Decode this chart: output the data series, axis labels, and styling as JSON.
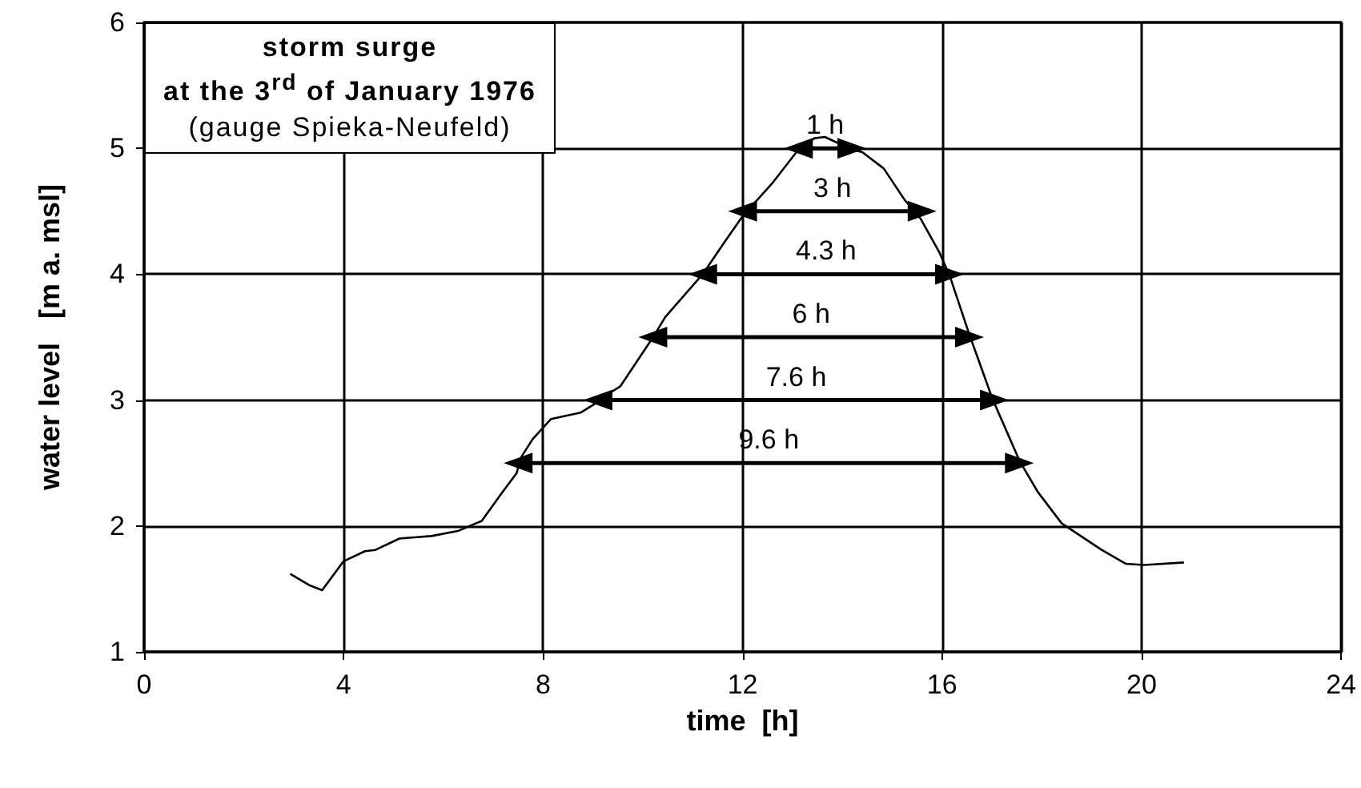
{
  "chart_data": {
    "type": "line",
    "title": "storm surge\nat the 3$^{rd}$ of January 1976",
    "subtitle": "(gauge Spieka-Neufeld)",
    "xlabel": "time  [h]",
    "ylabel": "water level   [m a. msl]",
    "x": [
      2.93,
      3.31,
      3.57,
      4.0,
      4.43,
      4.64,
      5.12,
      5.76,
      6.29,
      6.77,
      7.15,
      7.47,
      7.55,
      7.79,
      8.16,
      8.75,
      9.12,
      9.23,
      9.55,
      10.19,
      10.45,
      11.2,
      11.63,
      12.0,
      12.59,
      13.12,
      13.44,
      13.65,
      14.19,
      14.4,
      14.83,
      15.25,
      15.57,
      15.95,
      16.16,
      16.53,
      17.01,
      17.55,
      17.92,
      18.4,
      19.2,
      19.68,
      20.05,
      20.85
    ],
    "series": [
      {
        "color": "#000000",
        "values": [
          1.62,
          1.53,
          1.49,
          1.72,
          1.8,
          1.81,
          1.9,
          1.92,
          1.96,
          2.04,
          2.25,
          2.42,
          2.54,
          2.69,
          2.85,
          2.9,
          2.99,
          3.03,
          3.11,
          3.49,
          3.66,
          4.0,
          4.25,
          4.46,
          4.72,
          4.99,
          5.08,
          5.09,
          4.99,
          4.97,
          4.84,
          4.59,
          4.44,
          4.17,
          3.98,
          3.54,
          3.01,
          2.52,
          2.27,
          2.02,
          1.81,
          1.7,
          1.69,
          1.71
        ]
      },
      {
        "name": "1 h",
        "color": "#000000",
        "marker": "triangle",
        "x": [
          13.12,
          14.19
        ],
        "values": [
          5.0,
          5.0
        ]
      },
      {
        "name": "3 h",
        "color": "#000000",
        "marker": "triangle",
        "x": [
          12.0,
          15.6
        ],
        "values": [
          4.5,
          4.5
        ]
      },
      {
        "name": "4.3 h",
        "color": "#000000",
        "marker": "triangle",
        "x": [
          11.2,
          16.15
        ],
        "values": [
          4.0,
          4.0
        ]
      },
      {
        "name": "6 h",
        "color": "#000000",
        "marker": "triangle",
        "x": [
          10.2,
          16.55
        ],
        "values": [
          3.5,
          3.5
        ]
      },
      {
        "name": "7.6 h",
        "color": "#000000",
        "marker": "triangle",
        "x": [
          9.1,
          17.05
        ],
        "values": [
          3.0,
          3.0
        ]
      },
      {
        "name": "9.6 h",
        "color": "#000000",
        "marker": "triangle",
        "x": [
          7.5,
          17.55
        ],
        "values": [
          2.5,
          2.5
        ]
      }
    ],
    "xlim": [
      0,
      24
    ],
    "xticks": [
      0,
      4,
      8,
      12,
      16,
      20,
      24
    ],
    "ylim": [
      1,
      6
    ],
    "yticks": [
      1,
      2,
      3,
      4,
      5,
      6
    ],
    "grid": true,
    "marker": "none",
    "line_style": "solid"
  }
}
